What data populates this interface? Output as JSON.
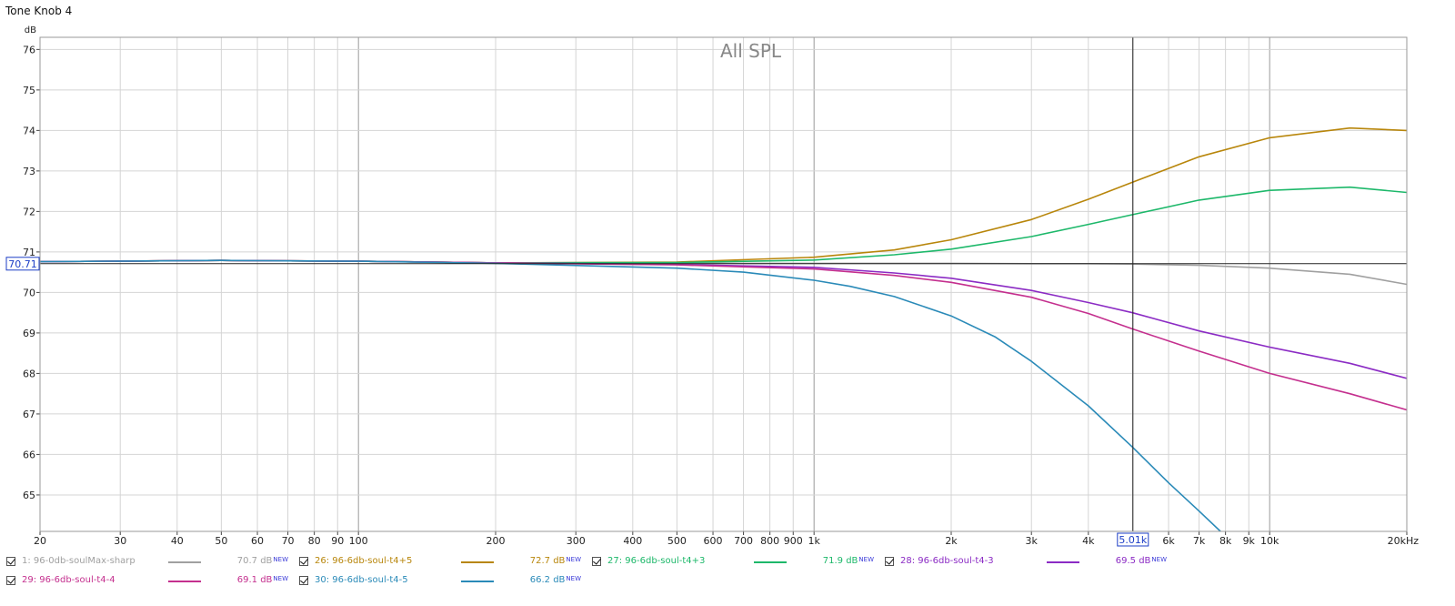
{
  "window_title": "Tone Knob 4",
  "chart_data": {
    "type": "line",
    "title": "All SPL",
    "ylabel": "dB",
    "xlabel": "",
    "x_scale": "log",
    "xlim": [
      20,
      20000
    ],
    "ylim": [
      64.1,
      76.3
    ],
    "x_ticks": [
      {
        "v": 20,
        "label": "20"
      },
      {
        "v": 30,
        "label": "30"
      },
      {
        "v": 40,
        "label": "40"
      },
      {
        "v": 50,
        "label": "50"
      },
      {
        "v": 60,
        "label": "60"
      },
      {
        "v": 70,
        "label": "70"
      },
      {
        "v": 80,
        "label": "80"
      },
      {
        "v": 90,
        "label": "90"
      },
      {
        "v": 100,
        "label": "100"
      },
      {
        "v": 200,
        "label": "200"
      },
      {
        "v": 300,
        "label": "300"
      },
      {
        "v": 400,
        "label": "400"
      },
      {
        "v": 500,
        "label": "500"
      },
      {
        "v": 600,
        "label": "600"
      },
      {
        "v": 700,
        "label": "700"
      },
      {
        "v": 800,
        "label": "800"
      },
      {
        "v": 900,
        "label": "900"
      },
      {
        "v": 1000,
        "label": "1k"
      },
      {
        "v": 2000,
        "label": "2k"
      },
      {
        "v": 3000,
        "label": "3k"
      },
      {
        "v": 4000,
        "label": "4k"
      },
      {
        "v": 6000,
        "label": "6k"
      },
      {
        "v": 7000,
        "label": "7k"
      },
      {
        "v": 8000,
        "label": "8k"
      },
      {
        "v": 9000,
        "label": "9k"
      },
      {
        "v": 10000,
        "label": "10k"
      },
      {
        "v": 20000,
        "label": "20kHz"
      }
    ],
    "y_ticks": [
      65,
      66,
      67,
      68,
      69,
      70,
      71,
      72,
      73,
      74,
      75,
      76
    ],
    "grid": true,
    "cursor": {
      "x": 5010,
      "x_label": "5.01k",
      "y": 70.71,
      "y_label": "70.71"
    },
    "series": [
      {
        "name": "1: 96-0db-soulMax-sharp",
        "color": "#a0a0a0",
        "value_label": "70.7 dB",
        "x": [
          20,
          50,
          100,
          200,
          500,
          1000,
          2000,
          3000,
          4000,
          5000,
          7000,
          10000,
          15000,
          20000
        ],
        "y": [
          70.76,
          70.79,
          70.77,
          70.73,
          70.72,
          70.72,
          70.72,
          70.71,
          70.71,
          70.7,
          70.67,
          70.6,
          70.45,
          70.2
        ]
      },
      {
        "name": "26: 96-6db-soul-t4+5",
        "color": "#b8860b",
        "value_label": "72.7 dB",
        "x": [
          20,
          50,
          100,
          200,
          500,
          1000,
          1500,
          2000,
          3000,
          4000,
          5000,
          7000,
          10000,
          15000,
          20000
        ],
        "y": [
          70.76,
          70.79,
          70.77,
          70.73,
          70.75,
          70.87,
          71.05,
          71.3,
          71.8,
          72.3,
          72.72,
          73.35,
          73.82,
          74.06,
          74.0
        ]
      },
      {
        "name": "27: 96-6db-soul-t4+3",
        "color": "#1db86a",
        "value_label": "71.9 dB",
        "x": [
          20,
          50,
          100,
          200,
          500,
          1000,
          1500,
          2000,
          3000,
          4000,
          5000,
          7000,
          10000,
          15000,
          20000
        ],
        "y": [
          70.76,
          70.79,
          70.77,
          70.73,
          70.74,
          70.8,
          70.93,
          71.07,
          71.38,
          71.68,
          71.92,
          72.28,
          72.52,
          72.6,
          72.47
        ]
      },
      {
        "name": "28: 96-6db-soul-t4-3",
        "color": "#8b2bc4",
        "value_label": "69.5 dB",
        "x": [
          20,
          50,
          100,
          200,
          500,
          1000,
          1500,
          2000,
          3000,
          4000,
          5000,
          7000,
          10000,
          15000,
          20000
        ],
        "y": [
          70.76,
          70.79,
          70.77,
          70.73,
          70.69,
          70.62,
          70.48,
          70.35,
          70.05,
          69.75,
          69.5,
          69.05,
          68.65,
          68.25,
          67.88
        ]
      },
      {
        "name": "29: 96-6db-soul-t4-4",
        "color": "#c42f8e",
        "value_label": "69.1 dB",
        "x": [
          20,
          50,
          100,
          200,
          500,
          1000,
          1500,
          2000,
          3000,
          4000,
          5000,
          7000,
          10000,
          15000,
          20000
        ],
        "y": [
          70.76,
          70.79,
          70.77,
          70.73,
          70.68,
          70.58,
          70.42,
          70.25,
          69.88,
          69.48,
          69.1,
          68.55,
          68.0,
          67.5,
          67.1
        ]
      },
      {
        "name": "30: 96-6db-soul-t4-5",
        "color": "#2a8ab8",
        "value_label": "66.2 dB",
        "x": [
          20,
          50,
          100,
          200,
          500,
          700,
          1000,
          1200,
          1500,
          2000,
          2500,
          3000,
          4000,
          5000,
          6000,
          7000,
          7800
        ],
        "y": [
          70.76,
          70.79,
          70.77,
          70.72,
          70.6,
          70.5,
          70.3,
          70.15,
          69.9,
          69.42,
          68.9,
          68.3,
          67.2,
          66.18,
          65.3,
          64.6,
          64.1
        ]
      }
    ]
  },
  "legend": [
    {
      "checked": true,
      "name": "1: 96-0db-soulMax-sharp",
      "value": "70.7 dB",
      "new": "NEW",
      "color": "#a0a0a0",
      "text_color": "#a0a0a0"
    },
    {
      "checked": true,
      "name": "26: 96-6db-soul-t4+5",
      "value": "72.7 dB",
      "new": "NEW",
      "color": "#b8860b",
      "text_color": "#b8860b"
    },
    {
      "checked": true,
      "name": "27: 96-6db-soul-t4+3",
      "value": "71.9 dB",
      "new": "NEW",
      "color": "#1db86a",
      "text_color": "#1db86a"
    },
    {
      "checked": true,
      "name": "28: 96-6db-soul-t4-3",
      "value": "69.5 dB",
      "new": "NEW",
      "color": "#8b2bc4",
      "text_color": "#8b2bc4"
    },
    {
      "checked": true,
      "name": "29: 96-6db-soul-t4-4",
      "value": "69.1 dB",
      "new": "NEW",
      "color": "#c42f8e",
      "text_color": "#c42f8e"
    },
    {
      "checked": true,
      "name": "30: 96-6db-soul-t4-5",
      "value": "66.2 dB",
      "new": "NEW",
      "color": "#2a8ab8",
      "text_color": "#2a8ab8"
    }
  ]
}
